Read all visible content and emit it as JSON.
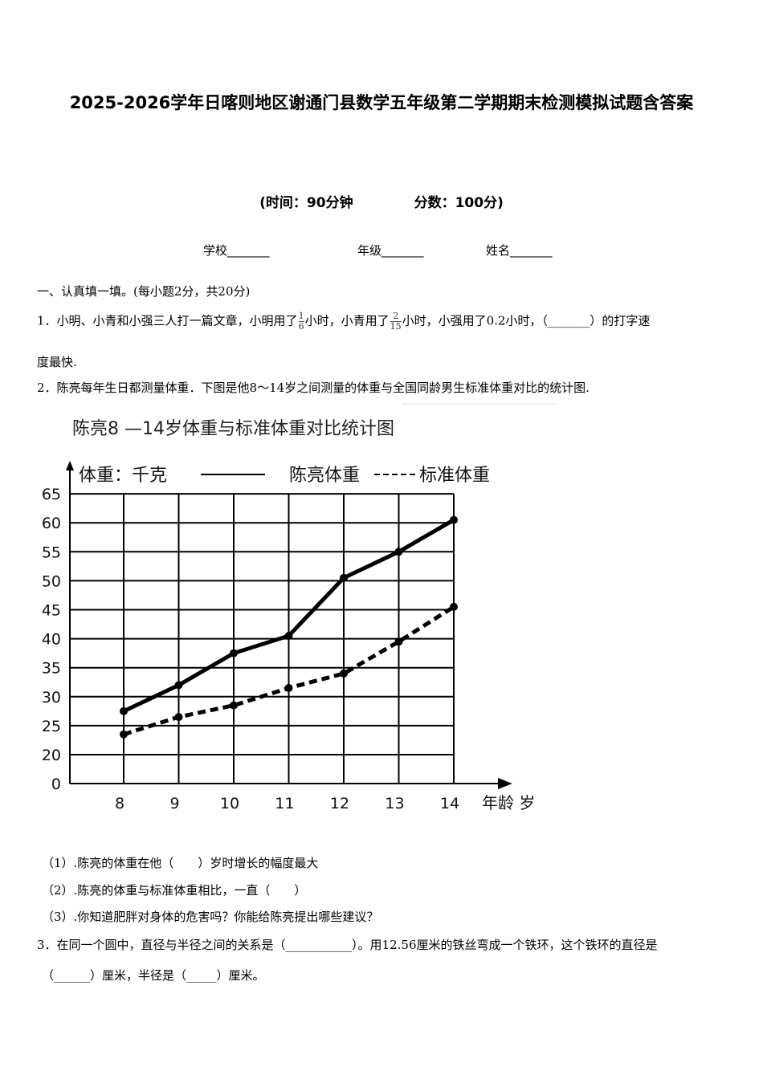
{
  "header": {
    "title": "2025-2026学年日喀则地区谢通门县数学五年级第二学期期末检测模拟试题含答案",
    "time": "(时间：90分钟",
    "score": "分数：100分)",
    "school": "学校_______",
    "grade": "年级_______",
    "name": "姓名_______"
  },
  "section1": {
    "heading": "一、认真填一填。(每小题2分，共20分)"
  },
  "q1": {
    "num": "1．",
    "text_a": "小明、小青和小强三人打一篇文章，小明用了",
    "frac1_n": "1",
    "frac1_d": "6",
    "text_b": "小时，小青用了",
    "frac2_n": "2",
    "frac2_d": "15",
    "text_c": "小时，小强用了0.2小时，（_______）的打字速",
    "text_d": "度最快."
  },
  "q2": {
    "num": "2．",
    "text": "陈亮每年生日都测量体重．下图是他8～14岁之间测量的体重与全国同龄男生标准体重对比的统计图.",
    "sub1": "（1）.陈亮的体重在他（　　）岁时增长的幅度最大",
    "sub2": "（2）.陈亮的体重与标准体重相比，一直（　　）",
    "sub3": "（3）.你知道肥胖对身体的危害吗？你能给陈亮提出哪些建议？"
  },
  "q3": {
    "num": "3．",
    "text_a": "在同一个圆中，直径与半径之间的关系是（___________）。用12.56厘米的铁丝弯成一个铁环，这个铁环的直径是",
    "text_b": "（______）厘米，半径是（_____）厘米。"
  },
  "chart_data": {
    "type": "line",
    "title": "陈亮8 —14岁体重与标准体重对比统计图",
    "ylabel": "体重：千克",
    "xlabel": "年龄 岁",
    "categories": [
      "8",
      "9",
      "10",
      "11",
      "12",
      "13",
      "14"
    ],
    "y_ticks": [
      "65",
      "60",
      "55",
      "50",
      "45",
      "40",
      "35",
      "30",
      "25",
      "20",
      "0"
    ],
    "ylim": [
      0,
      65
    ],
    "grid": true,
    "legend": "top",
    "series": [
      {
        "name": "陈亮体重",
        "style": "solid",
        "values": [
          27.5,
          32,
          37.5,
          40.5,
          50.5,
          55,
          60.5
        ]
      },
      {
        "name": "标准体重",
        "style": "dashed",
        "values": [
          23.5,
          26.5,
          28.5,
          31.5,
          34,
          39.5,
          45.5
        ]
      }
    ]
  }
}
